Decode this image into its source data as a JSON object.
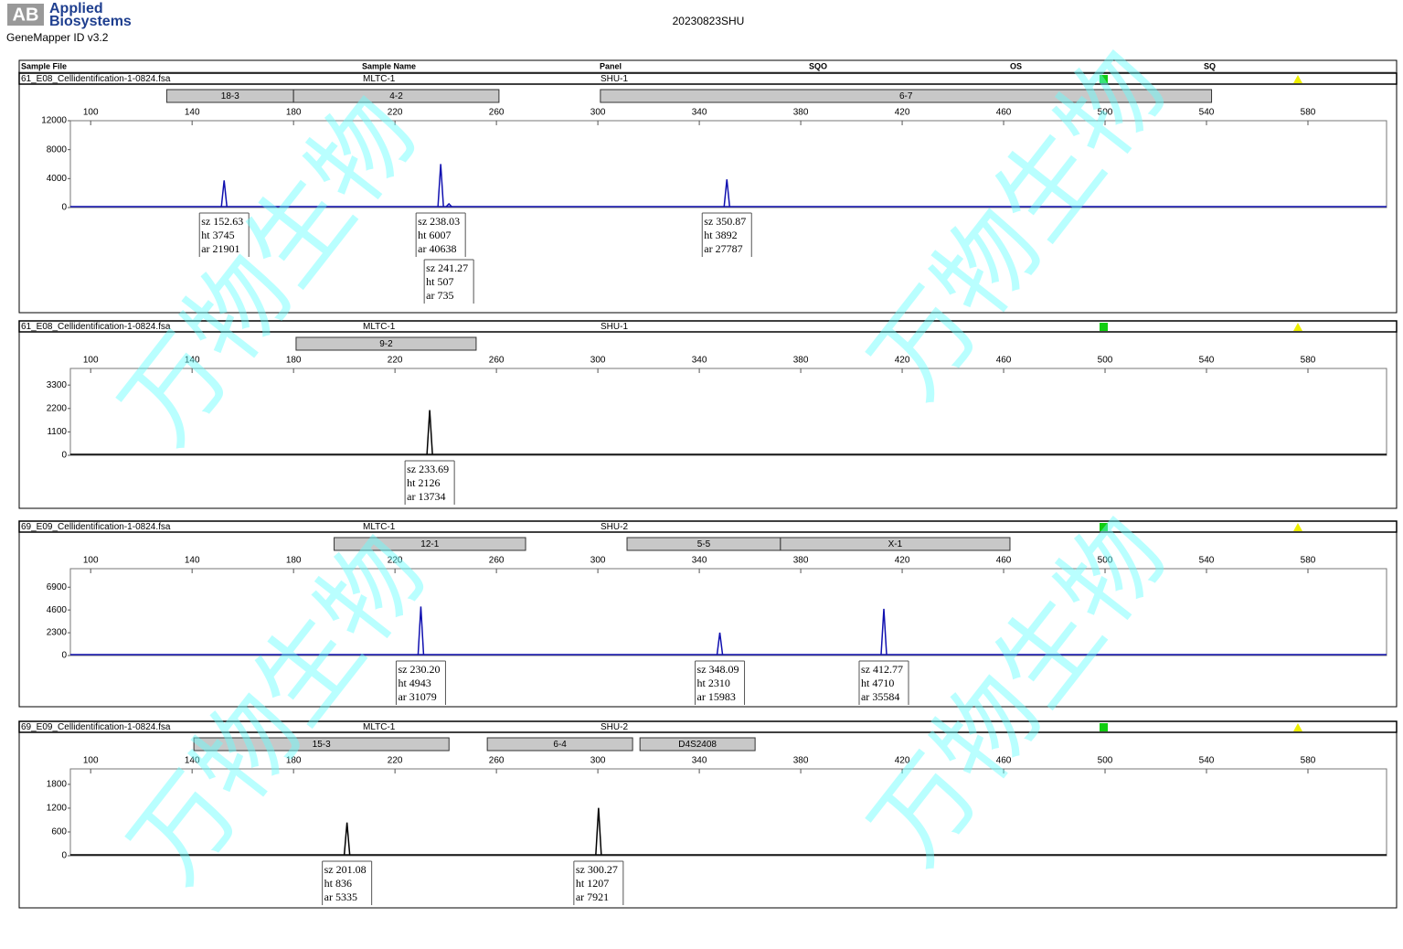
{
  "header": {
    "logo": "AB",
    "brand": [
      "Applied",
      "Biosystems"
    ],
    "software": "GeneMapper ID v3.2",
    "title": "20230823SHU"
  },
  "table_header": [
    "Sample File",
    "Sample Name",
    "Panel",
    "SQO",
    "OS",
    "SQ"
  ],
  "peak_keys": [
    "sz",
    "ht",
    "ar"
  ],
  "watermark": "万物生物",
  "chart_data": [
    {
      "type": "peaks",
      "sample_file": "61_E08_Cellidentification-1-0824.fsa",
      "sample_name": "MLTC-1",
      "panel": "SHU-1",
      "bins": [
        {
          "label": "18-3",
          "start": 130,
          "end": 180
        },
        {
          "label": "4-2",
          "start": 180,
          "end": 261
        },
        {
          "label": "6-7",
          "start": 301,
          "end": 542
        }
      ],
      "xlim": [
        92,
        611
      ],
      "xticks": [
        100,
        140,
        180,
        220,
        260,
        300,
        340,
        380,
        420,
        460,
        500,
        540,
        580
      ],
      "ylim": [
        0,
        12000
      ],
      "yticks": [
        0,
        4000,
        8000,
        12000
      ],
      "color": "#1010b0",
      "x": [
        152.63,
        238.03,
        241.27,
        350.87
      ],
      "x_labels": [
        "152.63",
        "238.03",
        "241.27",
        "350.87"
      ],
      "values": [
        3745,
        6007,
        507,
        3892
      ],
      "areas": [
        21901,
        40638,
        735,
        27787
      ]
    },
    {
      "type": "peaks",
      "sample_file": "61_E08_Cellidentification-1-0824.fsa",
      "sample_name": "MLTC-1",
      "panel": "SHU-1",
      "bins": [
        {
          "label": "9-2",
          "start": 181,
          "end": 252
        }
      ],
      "xlim": [
        92,
        611
      ],
      "xticks": [
        100,
        140,
        180,
        220,
        260,
        300,
        340,
        380,
        420,
        460,
        500,
        540,
        580
      ],
      "ylim": [
        0,
        4080
      ],
      "yticks": [
        0,
        1100,
        2200,
        3300
      ],
      "color": "#000000",
      "x": [
        233.69
      ],
      "x_labels": [
        "233.69"
      ],
      "values": [
        2126
      ],
      "areas": [
        13734
      ]
    },
    {
      "type": "peaks",
      "sample_file": "69_E09_Cellidentification-1-0824.fsa",
      "sample_name": "MLTC-1",
      "panel": "SHU-2",
      "bins": [
        {
          "label": "12-1",
          "start": 196,
          "end": 271.5
        },
        {
          "label": "5-5",
          "start": 311.5,
          "end": 372
        },
        {
          "label": "X-1",
          "start": 372,
          "end": 462.5
        }
      ],
      "xlim": [
        92,
        611
      ],
      "xticks": [
        100,
        140,
        180,
        220,
        260,
        300,
        340,
        380,
        420,
        460,
        500,
        540,
        580
      ],
      "ylim": [
        0,
        8770
      ],
      "yticks": [
        0,
        2300,
        4600,
        6900
      ],
      "color": "#1010b0",
      "x": [
        230.2,
        348.09,
        412.77
      ],
      "x_labels": [
        "230.20",
        "348.09",
        "412.77"
      ],
      "values": [
        4943,
        2310,
        4710
      ],
      "areas": [
        31079,
        15983,
        35584
      ]
    },
    {
      "type": "peaks",
      "sample_file": "69_E09_Cellidentification-1-0824.fsa",
      "sample_name": "MLTC-1",
      "panel": "SHU-2",
      "bins": [
        {
          "label": "15-3",
          "start": 140.7,
          "end": 241.3
        },
        {
          "label": "6-4",
          "start": 256.4,
          "end": 313.7
        },
        {
          "label": "D4S2408",
          "start": 316.6,
          "end": 362
        }
      ],
      "xlim": [
        92,
        611
      ],
      "xticks": [
        100,
        140,
        180,
        220,
        260,
        300,
        340,
        380,
        420,
        460,
        500,
        540,
        580
      ],
      "ylim": [
        0,
        2190
      ],
      "yticks": [
        0,
        600,
        1200,
        1800
      ],
      "color": "#000000",
      "x": [
        201.08,
        300.27
      ],
      "x_labels": [
        "201.08",
        "300.27"
      ],
      "values": [
        836,
        1207
      ],
      "areas": [
        5335,
        7921
      ]
    }
  ]
}
